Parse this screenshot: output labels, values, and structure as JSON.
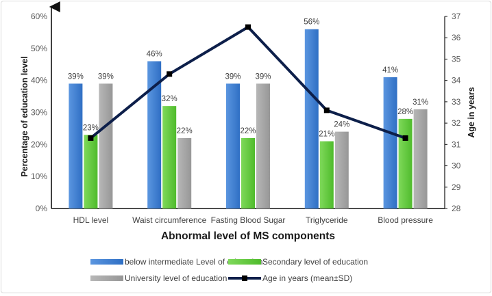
{
  "chart_data": {
    "type": "bar",
    "xlabel": "Abnormal  level of MS components",
    "ylabel": "Percentage of education level",
    "y2label": "Age in years",
    "ylim": [
      0,
      60
    ],
    "y_ticks": [
      "0%",
      "10%",
      "20%",
      "30%",
      "40%",
      "50%",
      "60%"
    ],
    "y2lim": [
      28,
      37
    ],
    "y2_ticks": [
      "28",
      "29",
      "30",
      "31",
      "32",
      "33",
      "34",
      "35",
      "36",
      "37"
    ],
    "categories": [
      "HDL level",
      "Waist circumference",
      "Fasting Blood Sugar",
      "Triglyceride",
      "Blood pressure"
    ],
    "series": [
      {
        "name": "below intermediate Level of education",
        "type": "bar",
        "color": "#4a86d6",
        "values": [
          39,
          46,
          39,
          56,
          41
        ],
        "labels": [
          "39%",
          "46%",
          "39%",
          "56%",
          "41%"
        ]
      },
      {
        "name": "Secondary level of education",
        "type": "bar",
        "color": "#66cc44",
        "values": [
          23,
          32,
          22,
          21,
          28
        ],
        "labels": [
          "23%",
          "32%",
          "22%",
          "21%",
          "28%"
        ]
      },
      {
        "name": "University level of education",
        "type": "bar",
        "color": "#a6a6a6",
        "values": [
          39,
          22,
          39,
          24,
          31
        ],
        "labels": [
          "39%",
          "22%",
          "39%",
          "24%",
          "31%"
        ]
      },
      {
        "name": "Age in years (mean±SD)",
        "type": "line",
        "axis": "right",
        "color": "#0d1f4a",
        "values": [
          31.3,
          34.3,
          36.5,
          32.6,
          31.3
        ]
      }
    ],
    "legend_position": "bottom"
  }
}
